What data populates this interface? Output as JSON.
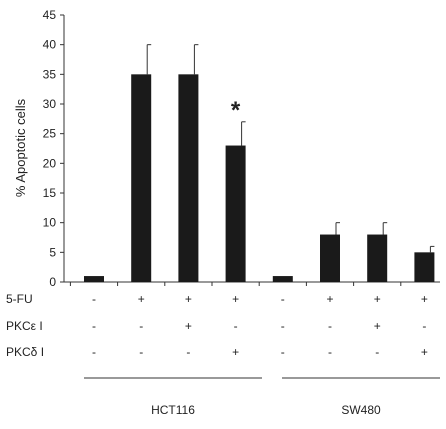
{
  "chart_data": {
    "type": "bar",
    "ylabel": "% Apoptotic cells",
    "ylim": [
      0,
      45
    ],
    "yticks": [
      0,
      5,
      10,
      15,
      20,
      25,
      30,
      35,
      40,
      45
    ],
    "grid": false,
    "legend": "none",
    "bar_color": "#1a1a1a",
    "bars": [
      {
        "group": "HCT116",
        "value": 1,
        "error": 0,
        "sig": ""
      },
      {
        "group": "HCT116",
        "value": 35,
        "error": 5,
        "sig": ""
      },
      {
        "group": "HCT116",
        "value": 35,
        "error": 5,
        "sig": ""
      },
      {
        "group": "HCT116",
        "value": 23,
        "error": 4,
        "sig": "*"
      },
      {
        "group": "SW480",
        "value": 1,
        "error": 0,
        "sig": ""
      },
      {
        "group": "SW480",
        "value": 8,
        "error": 2,
        "sig": ""
      },
      {
        "group": "SW480",
        "value": 8,
        "error": 2,
        "sig": ""
      },
      {
        "group": "SW480",
        "value": 5,
        "error": 1,
        "sig": ""
      }
    ],
    "treatment_rows": [
      {
        "label": "5-FU",
        "cells": [
          "-",
          "+",
          "+",
          "+",
          "-",
          "+",
          "+",
          "+"
        ]
      },
      {
        "label": "PKCε I",
        "cells": [
          "-",
          "-",
          "+",
          "-",
          "-",
          "-",
          "+",
          "-"
        ]
      },
      {
        "label": "PKCδ I",
        "cells": [
          "-",
          "-",
          "-",
          "+",
          "-",
          "-",
          "-",
          "+"
        ]
      }
    ],
    "groups": [
      "HCT116",
      "SW480"
    ]
  }
}
